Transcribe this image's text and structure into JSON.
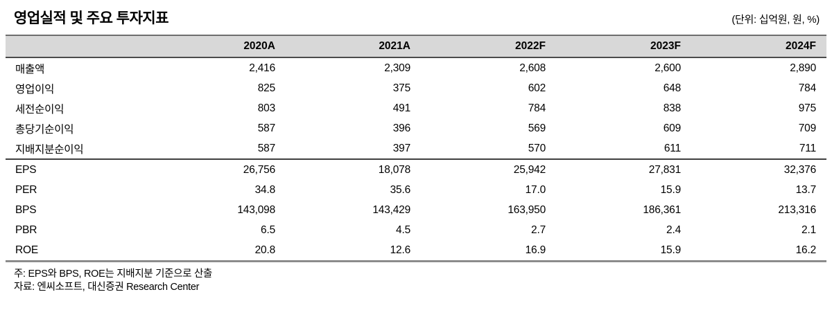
{
  "title": "영업실적 및 주요 투자지표",
  "unit_note": "(단위: 십억원, 원, %)",
  "colors": {
    "table_header_bg": "#d8d8d8",
    "table_top_border": "#6e6e6e",
    "table_bottom_border": "#8c8c8c"
  },
  "table": {
    "label_col_header": "",
    "columns": [
      "2020A",
      "2021A",
      "2022F",
      "2023F",
      "2024F"
    ],
    "sections": [
      {
        "name": "operating-results",
        "rows": [
          {
            "label": "매출액",
            "values": [
              "2,416",
              "2,309",
              "2,608",
              "2,600",
              "2,890"
            ]
          },
          {
            "label": "영업이익",
            "values": [
              "825",
              "375",
              "602",
              "648",
              "784"
            ]
          },
          {
            "label": "세전순이익",
            "values": [
              "803",
              "491",
              "784",
              "838",
              "975"
            ]
          },
          {
            "label": "총당기순이익",
            "values": [
              "587",
              "396",
              "569",
              "609",
              "709"
            ]
          },
          {
            "label": "지배지분순이익",
            "values": [
              "587",
              "397",
              "570",
              "611",
              "711"
            ]
          }
        ]
      },
      {
        "name": "investment-indicators",
        "rows": [
          {
            "label": "EPS",
            "values": [
              "26,756",
              "18,078",
              "25,942",
              "27,831",
              "32,376"
            ]
          },
          {
            "label": "PER",
            "values": [
              "34.8",
              "35.6",
              "17.0",
              "15.9",
              "13.7"
            ]
          },
          {
            "label": "BPS",
            "values": [
              "143,098",
              "143,429",
              "163,950",
              "186,361",
              "213,316"
            ]
          },
          {
            "label": "PBR",
            "values": [
              "6.5",
              "4.5",
              "2.7",
              "2.4",
              "2.1"
            ]
          },
          {
            "label": "ROE",
            "values": [
              "20.8",
              "12.6",
              "16.9",
              "15.9",
              "16.2"
            ]
          }
        ]
      }
    ]
  },
  "footnotes": [
    "주: EPS와 BPS, ROE는 지배지분 기준으로 산출",
    "자료: 엔씨소프트, 대신증권 Research Center"
  ]
}
